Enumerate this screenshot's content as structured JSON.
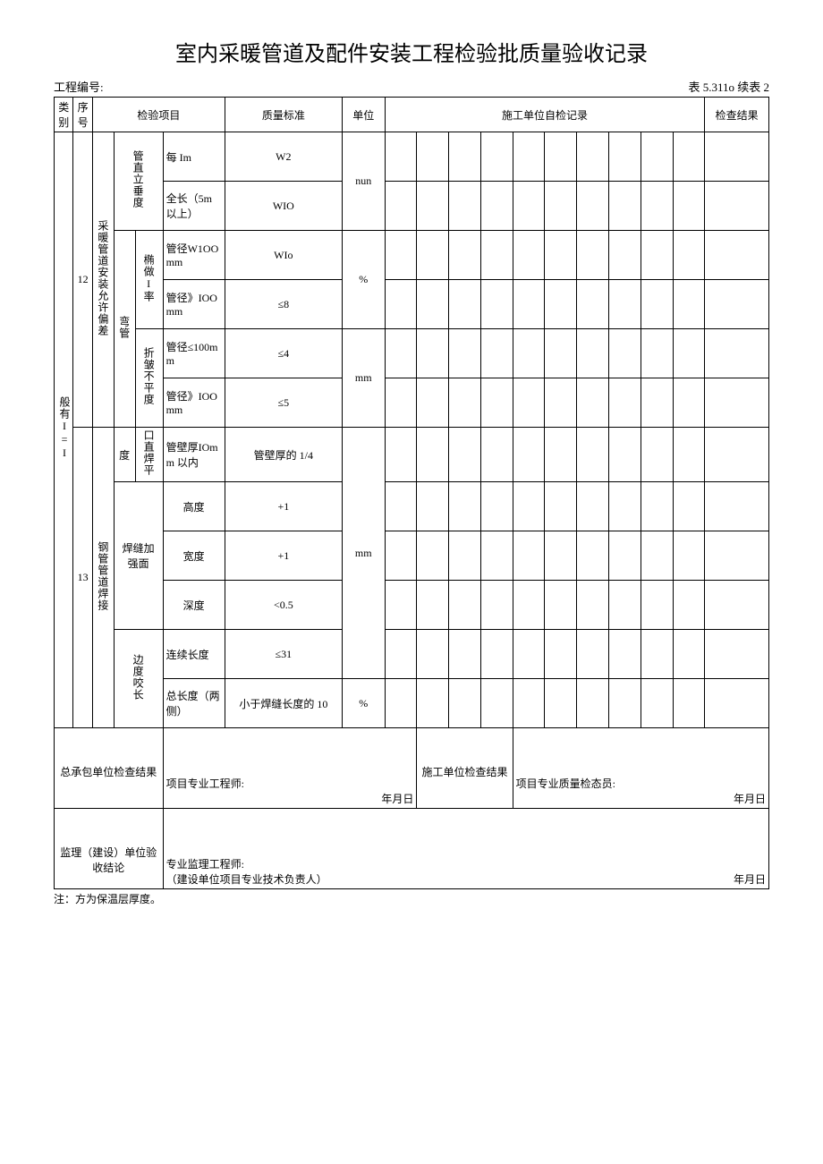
{
  "title": "室内采暖管道及配件安装工程检验批质量验收记录",
  "project_no_label": "工程编号:",
  "table_no": "表 5.311o 续表 2",
  "headers": {
    "category": "类别",
    "seq": "序号",
    "inspect_item": "检验项目",
    "quality_std": "质量标准",
    "unit": "单位",
    "self_record": "施工单位自检记录",
    "check_result": "检查结果"
  },
  "category_label": "般有I=I",
  "rows": {
    "r12": {
      "seq": "12",
      "group": "采暖管道安装允许偏差",
      "vert": {
        "label": "管直立垂度",
        "a_item": "每 Im",
        "a_std": "W2",
        "b_item": "全长（5m以上）",
        "b_std": "WIO",
        "unit": "nun"
      },
      "bend": {
        "outer": "弯管",
        "oval": {
          "label": "椭做I率",
          "a_item": "管径W1OOmm",
          "a_std": "WIo",
          "b_item": "管径》IOOmm",
          "b_std": "≤8",
          "unit": "%"
        },
        "wrinkle": {
          "label": "折皱不平度",
          "a_item": "管径≤100mm",
          "a_std": "≤4",
          "b_item": "管径》IOOmm",
          "b_std": "≤5",
          "unit": "mm"
        }
      }
    },
    "r13": {
      "seq": "13",
      "group": "钢管管道焊接",
      "flat": {
        "label1": "度",
        "label2": "口直焊平",
        "item": "管壁厚IOmm 以内",
        "std": "管壁厚的 1/4"
      },
      "reinf": {
        "label": "焊缝加强面",
        "h_item": "高度",
        "h_std": "+1",
        "w_item": "宽度",
        "w_std": "+1",
        "d_item": "深度",
        "d_std": "<0.5",
        "unit": "mm"
      },
      "bite": {
        "label": "边度咬长",
        "a_item": "连续长度",
        "a_std": "≤31",
        "b_item": "总长度（两侧）",
        "b_std": "小于焊缝长度的 10",
        "b_unit": "%"
      }
    }
  },
  "footer": {
    "contractor_result": "总承包单位检查结果",
    "construction_result": "施工单位检查结果",
    "project_engineer": "项目专业工程师:",
    "quality_inspector": "项目专业质量检态员:",
    "date": "年月日",
    "supervision_conclusion": "监理（建设）单位验收结论",
    "supervision_engineer": "专业监理工程师:",
    "supervision_sub": "（建设单位项目专业技术负责人）"
  },
  "note": "注：方为保温层厚度。"
}
